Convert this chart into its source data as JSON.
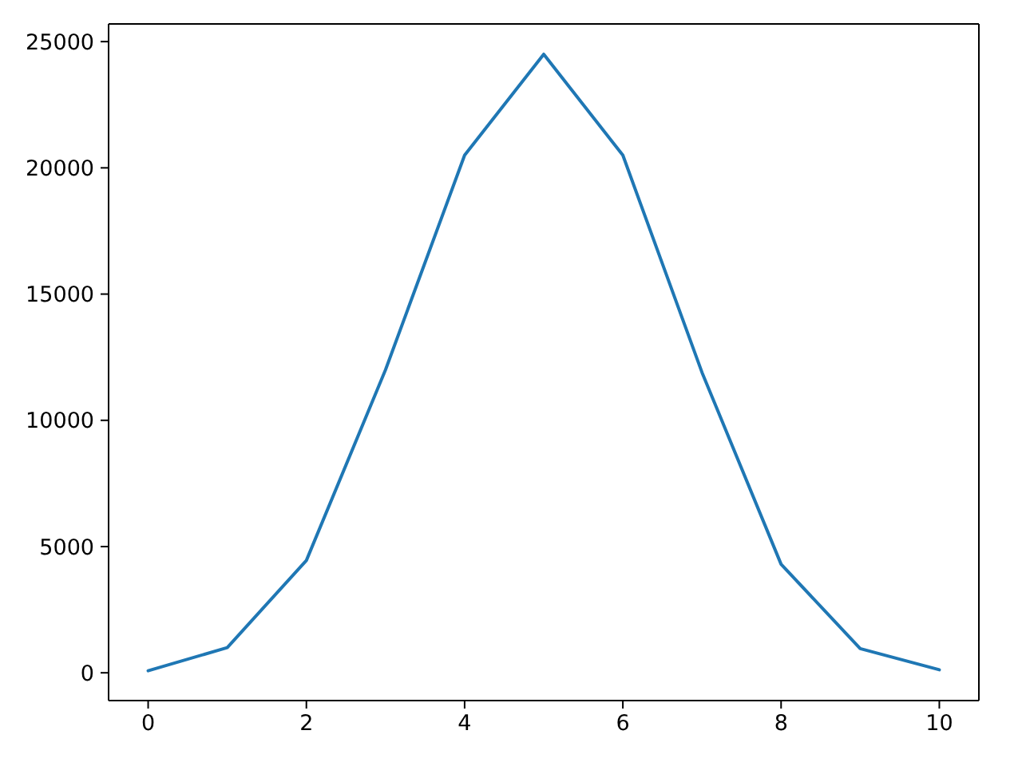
{
  "chart_data": {
    "type": "line",
    "x": [
      0,
      1,
      2,
      3,
      4,
      5,
      6,
      7,
      8,
      9,
      10
    ],
    "values": [
      80,
      1000,
      4450,
      12000,
      20500,
      24500,
      20500,
      11900,
      4300,
      960,
      120
    ],
    "color": "#1f77b4",
    "xlim": [
      -0.5,
      10.5
    ],
    "xticks": [
      0,
      2,
      4,
      6,
      8,
      10
    ],
    "ylim": [
      -1100,
      25700
    ],
    "yticks": [
      0,
      5000,
      10000,
      15000,
      20000,
      25000
    ],
    "grid": false
  }
}
